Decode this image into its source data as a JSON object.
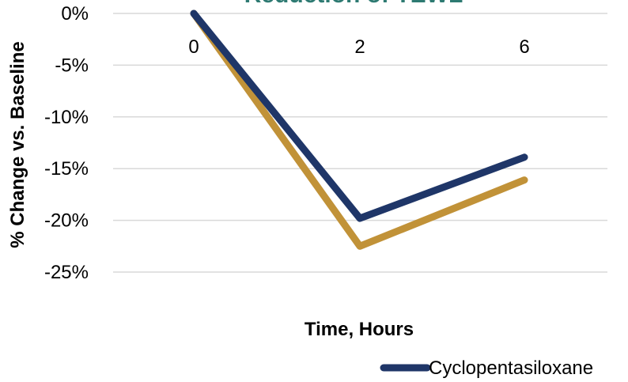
{
  "chart_data": {
    "type": "line",
    "title": "Reduction of TEWL",
    "xlabel": "Time, Hours",
    "ylabel": "% Change vs. Baseline",
    "categories": [
      "0",
      "2",
      "6"
    ],
    "ylim": [
      -0.25,
      0
    ],
    "yticks": [
      "0%",
      "-5%",
      "-10%",
      "-15%",
      "-20%",
      "-25%"
    ],
    "grid": true,
    "legend_position": "bottom-right",
    "series": [
      {
        "name": "Cyclopentasiloxane",
        "values": [
          0,
          -0.198,
          -0.139
        ],
        "color": "#1f3668"
      },
      {
        "name": "",
        "values": [
          0,
          -0.225,
          -0.161
        ],
        "color": "#c19238"
      }
    ]
  }
}
